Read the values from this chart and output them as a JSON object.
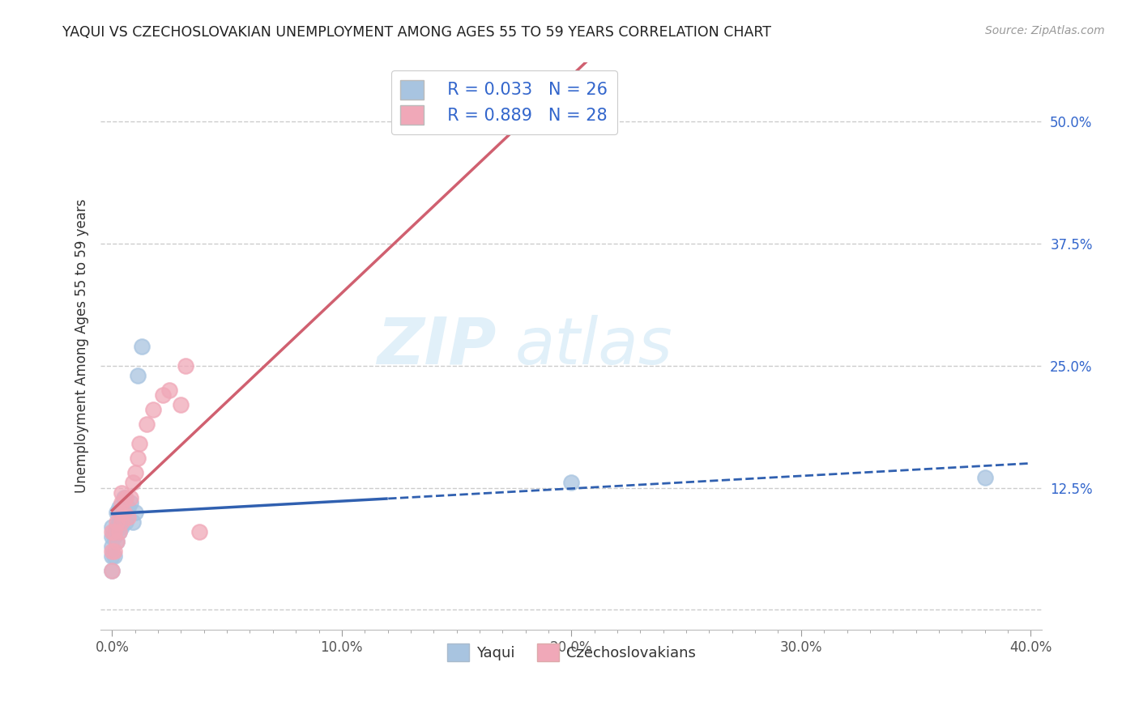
{
  "title": "YAQUI VS CZECHOSLOVAKIAN UNEMPLOYMENT AMONG AGES 55 TO 59 YEARS CORRELATION CHART",
  "source": "Source: ZipAtlas.com",
  "ylabel": "Unemployment Among Ages 55 to 59 years",
  "xlim": [
    -0.005,
    0.405
  ],
  "ylim": [
    -0.02,
    0.56
  ],
  "xtick_major": [
    0.0,
    0.1,
    0.2,
    0.3,
    0.4
  ],
  "xtick_minor_step": 0.01,
  "xticklabels": [
    "0.0%",
    "",
    "",
    "",
    "",
    "",
    "",
    "",
    "",
    "",
    "10.0%",
    "",
    "",
    "",
    "",
    "",
    "",
    "",
    "",
    "",
    "20.0%",
    "",
    "",
    "",
    "",
    "",
    "",
    "",
    "",
    "",
    "30.0%",
    "",
    "",
    "",
    "",
    "",
    "",
    "",
    "",
    "",
    "40.0%"
  ],
  "ytick_positions": [
    0.0,
    0.125,
    0.25,
    0.375,
    0.5
  ],
  "yticklabels": [
    "",
    "12.5%",
    "25.0%",
    "37.5%",
    "50.0%"
  ],
  "legend_r1": "R = 0.033",
  "legend_n1": "N = 26",
  "legend_r2": "R = 0.889",
  "legend_n2": "N = 28",
  "legend_label1": "Yaqui",
  "legend_label2": "Czechoslovakians",
  "yaqui_color": "#a8c4e0",
  "czech_color": "#f0a8b8",
  "yaqui_line_color": "#3060b0",
  "czech_line_color": "#d06070",
  "background_color": "#ffffff",
  "grid_color": "#cccccc",
  "yaqui_x": [
    0.0,
    0.0,
    0.0,
    0.0,
    0.0,
    0.001,
    0.001,
    0.002,
    0.002,
    0.002,
    0.003,
    0.003,
    0.003,
    0.004,
    0.004,
    0.005,
    0.005,
    0.006,
    0.007,
    0.008,
    0.009,
    0.01,
    0.011,
    0.013,
    0.2,
    0.38
  ],
  "yaqui_y": [
    0.04,
    0.055,
    0.065,
    0.075,
    0.085,
    0.055,
    0.075,
    0.07,
    0.085,
    0.1,
    0.08,
    0.09,
    0.105,
    0.085,
    0.095,
    0.1,
    0.115,
    0.09,
    0.105,
    0.11,
    0.09,
    0.1,
    0.24,
    0.27,
    0.13,
    0.135
  ],
  "czech_x": [
    0.0,
    0.0,
    0.0,
    0.001,
    0.001,
    0.002,
    0.002,
    0.003,
    0.003,
    0.004,
    0.004,
    0.004,
    0.005,
    0.006,
    0.007,
    0.008,
    0.009,
    0.01,
    0.011,
    0.012,
    0.015,
    0.018,
    0.022,
    0.025,
    0.03,
    0.032,
    0.038,
    0.2
  ],
  "czech_y": [
    0.04,
    0.06,
    0.08,
    0.06,
    0.08,
    0.07,
    0.09,
    0.08,
    0.1,
    0.09,
    0.11,
    0.12,
    0.1,
    0.115,
    0.095,
    0.115,
    0.13,
    0.14,
    0.155,
    0.17,
    0.19,
    0.205,
    0.22,
    0.225,
    0.21,
    0.25,
    0.08,
    0.52
  ]
}
